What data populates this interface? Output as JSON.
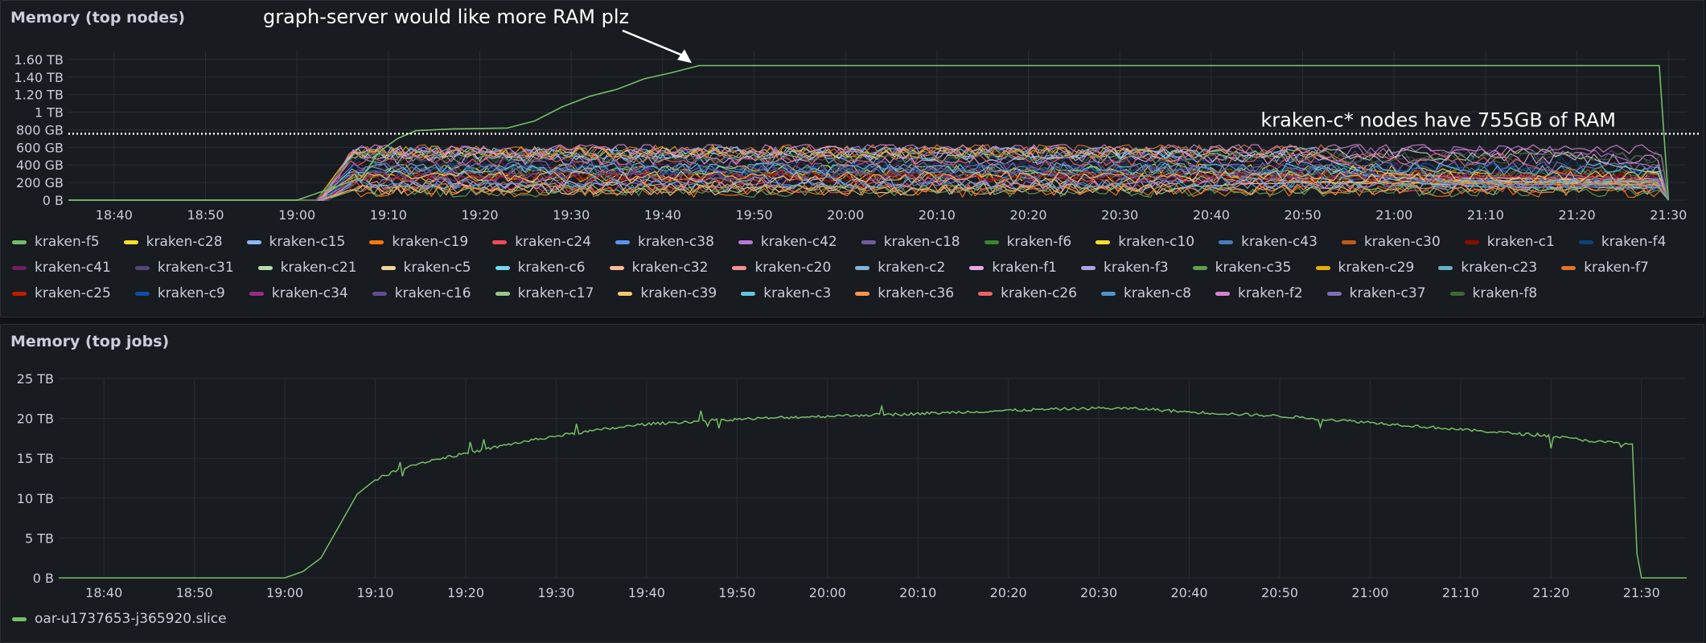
{
  "colors": {
    "background": "#181b1f",
    "grid": "#2a2d32",
    "text": "#ccccdc",
    "annotation": "#ffffff",
    "job_series": "#73bf69"
  },
  "panels": {
    "nodes": {
      "title": "Memory (top nodes)",
      "annotations": {
        "arrow_text": "graph-server would like more RAM plz",
        "threshold_text": "kraken-c* nodes have 755GB of RAM"
      }
    },
    "jobs": {
      "title": "Memory (top jobs)"
    }
  },
  "chart_data": [
    {
      "type": "line",
      "title": "Memory (top nodes)",
      "x_ticks": [
        "18:40",
        "18:50",
        "19:00",
        "19:10",
        "19:20",
        "19:30",
        "19:40",
        "19:50",
        "20:00",
        "20:10",
        "20:20",
        "20:30",
        "20:40",
        "20:50",
        "21:00",
        "21:10",
        "21:20",
        "21:30"
      ],
      "xlim": [
        "18:35",
        "21:32"
      ],
      "y_ticks": [
        0,
        200,
        400,
        600,
        800,
        1000,
        1200,
        1400,
        1600
      ],
      "y_tick_labels": [
        "0 B",
        "200 GB",
        "400 GB",
        "600 GB",
        "800 GB",
        "1 TB",
        "1.20 TB",
        "1.40 TB",
        "1.60 TB"
      ],
      "ylim": [
        0,
        1700
      ],
      "y_unit": "GB",
      "threshold": {
        "value": 755,
        "style": "dotted"
      },
      "grid": true,
      "legend_position": "bottom",
      "highlight_series": {
        "name": "kraken-f5",
        "points": [
          [
            "18:35",
            0
          ],
          [
            "19:00",
            0
          ],
          [
            "19:07",
            250
          ],
          [
            "19:09",
            550
          ],
          [
            "19:11",
            700
          ],
          [
            "19:13",
            790
          ],
          [
            "19:17",
            810
          ],
          [
            "19:23",
            820
          ],
          [
            "19:26",
            900
          ],
          [
            "19:29",
            1060
          ],
          [
            "19:32",
            1180
          ],
          [
            "19:35",
            1260
          ],
          [
            "19:38",
            1380
          ],
          [
            "19:41",
            1450
          ],
          [
            "19:44",
            1530
          ],
          [
            "21:29",
            1530
          ],
          [
            "21:30",
            0
          ]
        ]
      },
      "band": {
        "start": "19:02",
        "ramp_end": "19:05",
        "end": "21:30",
        "low": 100,
        "high": 590
      },
      "series": [
        {
          "name": "kraken-f5",
          "color": "#73bf69"
        },
        {
          "name": "kraken-c28",
          "color": "#fade2a"
        },
        {
          "name": "kraken-c15",
          "color": "#8ab8ff"
        },
        {
          "name": "kraken-c19",
          "color": "#ff780a"
        },
        {
          "name": "kraken-c24",
          "color": "#f2495c"
        },
        {
          "name": "kraken-c38",
          "color": "#5794f2"
        },
        {
          "name": "kraken-c42",
          "color": "#b877d9"
        },
        {
          "name": "kraken-c18",
          "color": "#705da0"
        },
        {
          "name": "kraken-f6",
          "color": "#37872d"
        },
        {
          "name": "kraken-c10",
          "color": "#fade2a"
        },
        {
          "name": "kraken-c43",
          "color": "#447ebc"
        },
        {
          "name": "kraken-c30",
          "color": "#c15c17"
        },
        {
          "name": "kraken-c1",
          "color": "#890f02"
        },
        {
          "name": "kraken-f4",
          "color": "#0a437c"
        },
        {
          "name": "kraken-c41",
          "color": "#6d1f62"
        },
        {
          "name": "kraken-c31",
          "color": "#584477"
        },
        {
          "name": "kraken-c21",
          "color": "#b7dbab"
        },
        {
          "name": "kraken-c5",
          "color": "#f4d598"
        },
        {
          "name": "kraken-c6",
          "color": "#70dbed"
        },
        {
          "name": "kraken-c32",
          "color": "#f9ba8f"
        },
        {
          "name": "kraken-c20",
          "color": "#f29191"
        },
        {
          "name": "kraken-c2",
          "color": "#82b5d8"
        },
        {
          "name": "kraken-f1",
          "color": "#e5a8e2"
        },
        {
          "name": "kraken-f3",
          "color": "#aea2e0"
        },
        {
          "name": "kraken-c35",
          "color": "#629e51"
        },
        {
          "name": "kraken-c29",
          "color": "#e5ac0e"
        },
        {
          "name": "kraken-c23",
          "color": "#64b0c8"
        },
        {
          "name": "kraken-f7",
          "color": "#e0752d"
        },
        {
          "name": "kraken-c25",
          "color": "#bf1b00"
        },
        {
          "name": "kraken-c9",
          "color": "#0a50a1"
        },
        {
          "name": "kraken-c34",
          "color": "#962d82"
        },
        {
          "name": "kraken-c16",
          "color": "#614d93"
        },
        {
          "name": "kraken-c17",
          "color": "#9ac48a"
        },
        {
          "name": "kraken-c39",
          "color": "#f2c96d"
        },
        {
          "name": "kraken-c3",
          "color": "#65c5db"
        },
        {
          "name": "kraken-c36",
          "color": "#f9934e"
        },
        {
          "name": "kraken-c26",
          "color": "#ea6460"
        },
        {
          "name": "kraken-c8",
          "color": "#5195ce"
        },
        {
          "name": "kraken-f2",
          "color": "#d683ce"
        },
        {
          "name": "kraken-c37",
          "color": "#806eb7"
        },
        {
          "name": "kraken-f8",
          "color": "#3f6833"
        }
      ]
    },
    {
      "type": "line",
      "title": "Memory (top jobs)",
      "x_ticks": [
        "18:40",
        "18:50",
        "19:00",
        "19:10",
        "19:20",
        "19:30",
        "19:40",
        "19:50",
        "20:00",
        "20:10",
        "20:20",
        "20:30",
        "20:40",
        "20:50",
        "21:00",
        "21:10",
        "21:20",
        "21:30"
      ],
      "xlim": [
        "18:35",
        "21:35"
      ],
      "y_ticks": [
        0,
        5,
        10,
        15,
        20,
        25
      ],
      "y_tick_labels": [
        "0 B",
        "5 TB",
        "10 TB",
        "15 TB",
        "20 TB",
        "25 TB"
      ],
      "ylim": [
        0,
        25
      ],
      "y_unit": "TB",
      "grid": true,
      "legend_position": "bottom",
      "series": [
        {
          "name": "oar-u1737653-j365920.slice",
          "color": "#73bf69",
          "points": [
            [
              "18:35",
              0
            ],
            [
              "19:00",
              0
            ],
            [
              "19:02",
              0.8
            ],
            [
              "19:04",
              2.5
            ],
            [
              "19:06",
              6.5
            ],
            [
              "19:08",
              10.5
            ],
            [
              "19:10",
              12.3
            ],
            [
              "19:13",
              13.8
            ],
            [
              "19:16",
              14.7
            ],
            [
              "19:20",
              15.6
            ],
            [
              "19:25",
              16.8
            ],
            [
              "19:30",
              17.8
            ],
            [
              "19:35",
              18.6
            ],
            [
              "19:40",
              19.3
            ],
            [
              "19:45",
              19.6
            ],
            [
              "19:50",
              19.9
            ],
            [
              "20:00",
              20.3
            ],
            [
              "20:10",
              20.6
            ],
            [
              "20:20",
              21.0
            ],
            [
              "20:30",
              21.3
            ],
            [
              "20:35",
              21.2
            ],
            [
              "20:40",
              20.8
            ],
            [
              "20:50",
              20.3
            ],
            [
              "21:00",
              19.5
            ],
            [
              "21:10",
              18.6
            ],
            [
              "21:20",
              17.8
            ],
            [
              "21:25",
              17.1
            ],
            [
              "21:29",
              16.8
            ],
            [
              "21:29.5",
              3
            ],
            [
              "21:30",
              0
            ],
            [
              "21:35",
              0
            ]
          ]
        }
      ]
    }
  ]
}
